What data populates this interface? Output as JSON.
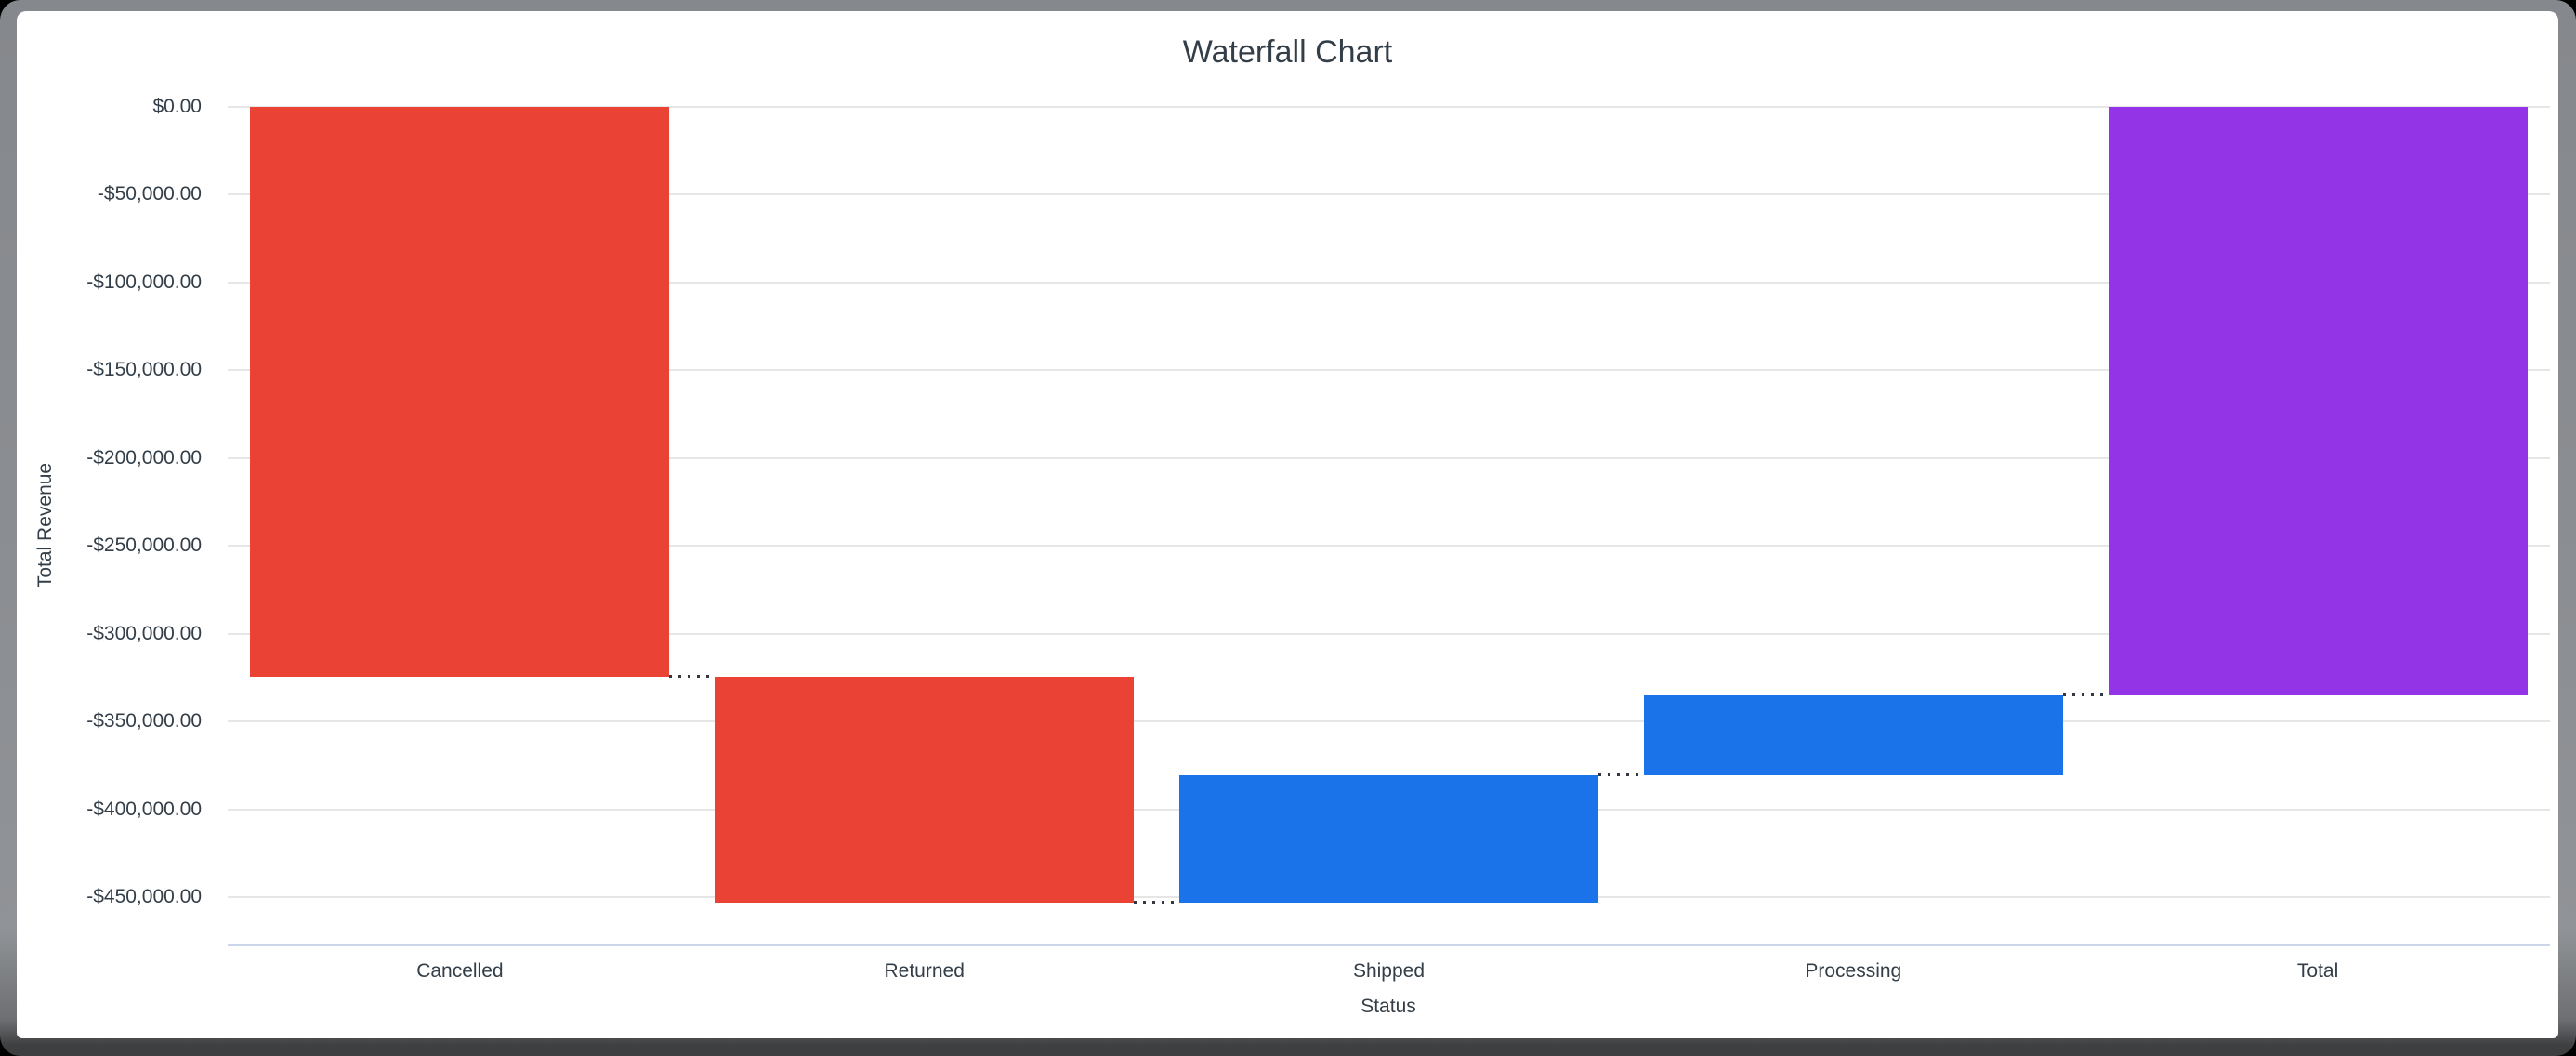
{
  "chart": {
    "title": "Waterfall Chart",
    "x_axis_title": "Status",
    "y_axis_title": "Total Revenue"
  },
  "chart_data": {
    "type": "bar",
    "variant": "waterfall",
    "title": "Waterfall Chart",
    "xlabel": "Status",
    "ylabel": "Total Revenue",
    "categories": [
      "Cancelled",
      "Returned",
      "Shipped",
      "Processing",
      "Total"
    ],
    "values": [
      -324500,
      -128500,
      72500,
      45500,
      -335000
    ],
    "measure": [
      "relative",
      "relative",
      "relative",
      "relative",
      "total"
    ],
    "cumulative": [
      {
        "label": "Cancelled",
        "start": 0,
        "end": -324500
      },
      {
        "label": "Returned",
        "start": -324500,
        "end": -453000
      },
      {
        "label": "Shipped",
        "start": -453000,
        "end": -380500
      },
      {
        "label": "Processing",
        "start": -380500,
        "end": -335000
      },
      {
        "label": "Total",
        "start": 0,
        "end": -335000
      }
    ],
    "bar_colors": [
      "#ea4335",
      "#ea4335",
      "#1a73e8",
      "#1a73e8",
      "#9334e6"
    ],
    "color_roles": {
      "decrease": "#ea4335",
      "increase": "#1a73e8",
      "total": "#9334e6"
    },
    "ylim": [
      -477500,
      0
    ],
    "ytick_step": -50000,
    "ytick_labels": [
      "$0.00",
      "-$50,000.00",
      "-$100,000.00",
      "-$150,000.00",
      "-$200,000.00",
      "-$250,000.00",
      "-$300,000.00",
      "-$350,000.00",
      "-$400,000.00",
      "-$450,000.00"
    ],
    "grid": true,
    "legend": false,
    "connector_style": "dotted",
    "colors": {
      "grid_line": "#e6e6e6",
      "axis_line": "#ccd6eb",
      "connector": "#333840",
      "text": "#333e48",
      "background": "#ffffff"
    }
  }
}
